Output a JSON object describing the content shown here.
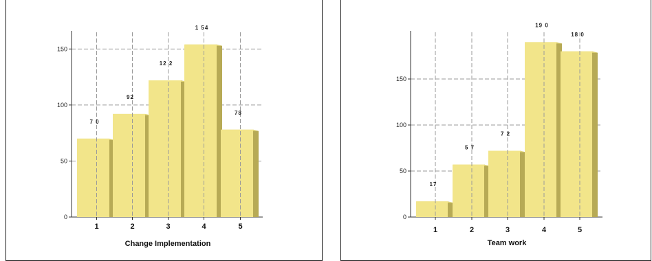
{
  "colors": {
    "bar_front": "#f2e58a",
    "bar_side": "#b7aa55",
    "bar_top": "#e6d97a",
    "grid": "#9a9a9a"
  },
  "chart_data": [
    {
      "type": "bar",
      "xlabel": "Change Implementation",
      "ylabel": "",
      "categories": [
        "1",
        "2",
        "3",
        "4",
        "5"
      ],
      "values": [
        70,
        92,
        122,
        154,
        78
      ],
      "value_labels": [
        "7 0",
        "92",
        "12 2",
        "1 54",
        "78"
      ],
      "yticks": [
        0,
        50,
        100,
        150
      ],
      "ytick_labels": [
        "0",
        "50",
        "100",
        "150"
      ],
      "ylim": [
        0,
        160
      ],
      "grid": true
    },
    {
      "type": "bar",
      "xlabel": "Team work",
      "ylabel": "",
      "categories": [
        "1",
        "2",
        "3",
        "4",
        "5"
      ],
      "values": [
        17,
        57,
        72,
        190,
        180
      ],
      "value_labels": [
        "17",
        "5 7",
        "7 2",
        "19 0",
        "18 0"
      ],
      "yticks": [
        0,
        50,
        100,
        150
      ],
      "ytick_labels": [
        "0",
        "50",
        "100",
        "150"
      ],
      "ylim": [
        0,
        200
      ],
      "grid": true
    }
  ]
}
